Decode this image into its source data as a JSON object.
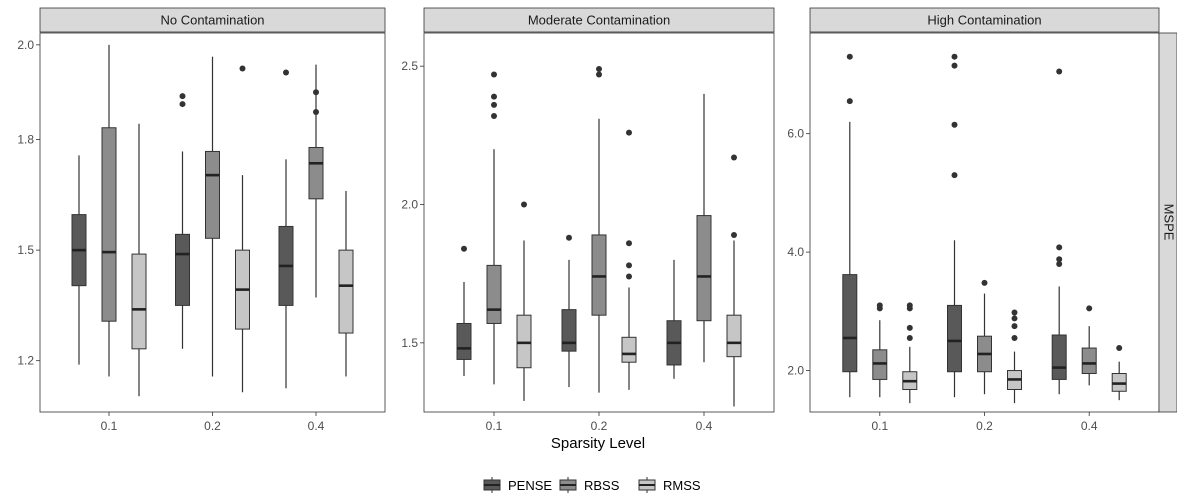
{
  "chart_data": {
    "type": "boxplot",
    "xlabel": "Sparsity Level",
    "ylabel": "MSPE",
    "categories": [
      "0.1",
      "0.2",
      "0.4"
    ],
    "series": [
      {
        "name": "PENSE",
        "color": "#595959"
      },
      {
        "name": "RBSS",
        "color": "#8c8c8c"
      },
      {
        "name": "RMSS",
        "color": "#c6c6c6"
      }
    ],
    "panels": [
      {
        "title": "No Contamination",
        "ylim": [
          1.07,
          2.03
        ],
        "ytick_values": [
          1.2,
          1.48,
          1.76,
          2.0
        ],
        "ytick_labels": [
          "1.2",
          "1.5",
          "1.8",
          "2.0"
        ],
        "boxes": [
          [
            {
              "min": 1.19,
              "q1": 1.39,
              "median": 1.48,
              "q3": 1.57,
              "max": 1.72,
              "outliers": []
            },
            {
              "min": 1.16,
              "q1": 1.3,
              "median": 1.475,
              "q3": 1.79,
              "max": 2.0,
              "outliers": []
            },
            {
              "min": 1.11,
              "q1": 1.23,
              "median": 1.33,
              "q3": 1.47,
              "max": 1.8,
              "outliers": []
            }
          ],
          [
            {
              "min": 1.23,
              "q1": 1.34,
              "median": 1.47,
              "q3": 1.52,
              "max": 1.73,
              "outliers": [
                1.85,
                1.87
              ]
            },
            {
              "min": 1.16,
              "q1": 1.51,
              "median": 1.67,
              "q3": 1.73,
              "max": 1.97,
              "outliers": []
            },
            {
              "min": 1.12,
              "q1": 1.28,
              "median": 1.38,
              "q3": 1.48,
              "max": 1.67,
              "outliers": [
                1.94
              ]
            }
          ],
          [
            {
              "min": 1.13,
              "q1": 1.34,
              "median": 1.44,
              "q3": 1.54,
              "max": 1.71,
              "outliers": [
                1.93
              ]
            },
            {
              "min": 1.36,
              "q1": 1.61,
              "median": 1.7,
              "q3": 1.74,
              "max": 1.95,
              "outliers": [
                1.83,
                1.88
              ]
            },
            {
              "min": 1.16,
              "q1": 1.27,
              "median": 1.39,
              "q3": 1.48,
              "max": 1.63,
              "outliers": []
            }
          ]
        ]
      },
      {
        "title": "Moderate Contamination",
        "ylim": [
          1.25,
          2.62
        ],
        "ytick_values": [
          1.5,
          2.0,
          2.5
        ],
        "ytick_labels": [
          "1.5",
          "2.0",
          "2.5"
        ],
        "boxes": [
          [
            {
              "min": 1.38,
              "q1": 1.44,
              "median": 1.48,
              "q3": 1.57,
              "max": 1.72,
              "outliers": [
                1.84
              ]
            },
            {
              "min": 1.35,
              "q1": 1.57,
              "median": 1.62,
              "q3": 1.78,
              "max": 2.2,
              "outliers": [
                2.32,
                2.36,
                2.39,
                2.47
              ]
            },
            {
              "min": 1.29,
              "q1": 1.41,
              "median": 1.5,
              "q3": 1.6,
              "max": 1.87,
              "outliers": [
                2.0
              ]
            }
          ],
          [
            {
              "min": 1.34,
              "q1": 1.47,
              "median": 1.5,
              "q3": 1.62,
              "max": 1.8,
              "outliers": [
                1.88
              ]
            },
            {
              "min": 1.32,
              "q1": 1.6,
              "median": 1.74,
              "q3": 1.89,
              "max": 2.31,
              "outliers": [
                2.47,
                2.49
              ]
            },
            {
              "min": 1.33,
              "q1": 1.43,
              "median": 1.46,
              "q3": 1.52,
              "max": 1.7,
              "outliers": [
                1.74,
                1.78,
                1.86,
                2.26
              ]
            }
          ],
          [
            {
              "min": 1.37,
              "q1": 1.42,
              "median": 1.5,
              "q3": 1.58,
              "max": 1.8,
              "outliers": []
            },
            {
              "min": 1.43,
              "q1": 1.58,
              "median": 1.74,
              "q3": 1.96,
              "max": 2.4,
              "outliers": []
            },
            {
              "min": 1.27,
              "q1": 1.45,
              "median": 1.5,
              "q3": 1.6,
              "max": 1.87,
              "outliers": [
                1.89,
                2.17
              ]
            }
          ]
        ]
      },
      {
        "title": "High Contamination",
        "ylim": [
          1.3,
          7.7
        ],
        "ytick_values": [
          2.0,
          4.0,
          6.0
        ],
        "ytick_labels": [
          "2.0",
          "4.0",
          "6.0"
        ],
        "boxes": [
          [
            {
              "min": 1.55,
              "q1": 1.98,
              "median": 2.55,
              "q3": 3.62,
              "max": 6.2,
              "outliers": [
                6.55,
                7.3
              ]
            },
            {
              "min": 1.55,
              "q1": 1.85,
              "median": 2.12,
              "q3": 2.35,
              "max": 2.85,
              "outliers": [
                3.05,
                3.1
              ]
            },
            {
              "min": 1.45,
              "q1": 1.68,
              "median": 1.82,
              "q3": 1.98,
              "max": 2.4,
              "outliers": [
                2.55,
                2.72,
                3.05,
                3.1
              ]
            }
          ],
          [
            {
              "min": 1.55,
              "q1": 1.98,
              "median": 2.5,
              "q3": 3.1,
              "max": 4.2,
              "outliers": [
                5.3,
                6.15,
                7.15,
                7.3
              ]
            },
            {
              "min": 1.6,
              "q1": 1.98,
              "median": 2.28,
              "q3": 2.58,
              "max": 3.3,
              "outliers": [
                3.48
              ]
            },
            {
              "min": 1.45,
              "q1": 1.68,
              "median": 1.85,
              "q3": 2.0,
              "max": 2.32,
              "outliers": [
                2.55,
                2.75,
                2.88,
                2.98
              ]
            }
          ],
          [
            {
              "min": 1.6,
              "q1": 1.85,
              "median": 2.05,
              "q3": 2.6,
              "max": 3.42,
              "outliers": [
                3.8,
                3.88,
                4.08,
                7.05
              ]
            },
            {
              "min": 1.75,
              "q1": 1.95,
              "median": 2.12,
              "q3": 2.38,
              "max": 2.75,
              "outliers": [
                3.05
              ]
            },
            {
              "min": 1.5,
              "q1": 1.65,
              "median": 1.78,
              "q3": 1.95,
              "max": 2.15,
              "outliers": [
                2.38
              ]
            }
          ]
        ]
      }
    ]
  }
}
